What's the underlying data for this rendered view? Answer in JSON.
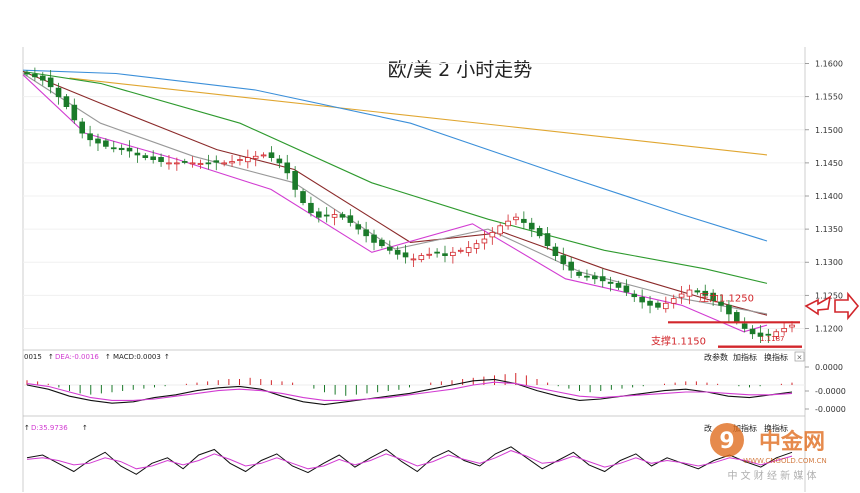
{
  "title": "欧/美 2 小时走势",
  "chart_data": {
    "type": "candlestick",
    "title": "欧/美 2 小时走势",
    "y_ticks": [
      "1.1600",
      "1.1550",
      "1.1500",
      "1.1450",
      "1.1400",
      "1.1350",
      "1.1300",
      "1.1250",
      "1.1200"
    ],
    "ylim": [
      1.1175,
      1.1625
    ],
    "price_trace": [
      1.1585,
      1.158,
      1.1575,
      1.1565,
      1.155,
      1.1535,
      1.1515,
      1.1495,
      1.1485,
      1.148,
      1.1475,
      1.1472,
      1.147,
      1.1468,
      1.1462,
      1.1458,
      1.1455,
      1.1452,
      1.145,
      1.145,
      1.1452,
      1.145,
      1.1449,
      1.145,
      1.1451,
      1.145,
      1.1452,
      1.1455,
      1.1458,
      1.146,
      1.1462,
      1.1458,
      1.145,
      1.1435,
      1.141,
      1.139,
      1.1375,
      1.1368,
      1.137,
      1.1372,
      1.1368,
      1.136,
      1.135,
      1.134,
      1.133,
      1.1325,
      1.1318,
      1.1312,
      1.1308,
      1.1305,
      1.131,
      1.1312,
      1.1315,
      1.131,
      1.1315,
      1.1318,
      1.1322,
      1.1328,
      1.1335,
      1.1345,
      1.1355,
      1.1362,
      1.1368,
      1.136,
      1.135,
      1.134,
      1.1325,
      1.131,
      1.1298,
      1.1288,
      1.128,
      1.1278,
      1.1275,
      1.1272,
      1.1268,
      1.1262,
      1.1255,
      1.1248,
      1.124,
      1.1235,
      1.1232,
      1.1238,
      1.1245,
      1.1252,
      1.1258,
      1.1255,
      1.125,
      1.1242,
      1.1235,
      1.1222,
      1.121,
      1.12,
      1.1192,
      1.1188,
      1.119,
      1.1195,
      1.12,
      1.1205
    ],
    "moving_averages": [
      {
        "color": "#e0a630",
        "points": [
          [
            0.06,
            1.1578
          ],
          [
            0.96,
            1.1462
          ]
        ]
      },
      {
        "color": "#3b8fd9",
        "points": [
          [
            0.0,
            1.159
          ],
          [
            0.12,
            1.1585
          ],
          [
            0.3,
            1.156
          ],
          [
            0.5,
            1.151
          ],
          [
            0.7,
            1.143
          ],
          [
            0.85,
            1.1372
          ],
          [
            0.96,
            1.1332
          ]
        ]
      },
      {
        "color": "#2e9a2e",
        "points": [
          [
            0.0,
            1.1588
          ],
          [
            0.1,
            1.157
          ],
          [
            0.28,
            1.151
          ],
          [
            0.45,
            1.142
          ],
          [
            0.6,
            1.1365
          ],
          [
            0.75,
            1.1318
          ],
          [
            0.88,
            1.129
          ],
          [
            0.96,
            1.1268
          ]
        ]
      },
      {
        "color": "#8b2a2a",
        "points": [
          [
            0.0,
            1.1588
          ],
          [
            0.1,
            1.154
          ],
          [
            0.25,
            1.147
          ],
          [
            0.35,
            1.144
          ],
          [
            0.5,
            1.133
          ],
          [
            0.62,
            1.1345
          ],
          [
            0.75,
            1.129
          ],
          [
            0.88,
            1.1245
          ],
          [
            0.96,
            1.122
          ]
        ]
      },
      {
        "color": "#999999",
        "points": [
          [
            0.0,
            1.1585
          ],
          [
            0.1,
            1.151
          ],
          [
            0.22,
            1.146
          ],
          [
            0.35,
            1.142
          ],
          [
            0.48,
            1.132
          ],
          [
            0.6,
            1.135
          ],
          [
            0.72,
            1.1285
          ],
          [
            0.85,
            1.1245
          ],
          [
            0.96,
            1.1222
          ]
        ]
      },
      {
        "color": "#d23cd2",
        "points": [
          [
            0.0,
            1.1583
          ],
          [
            0.08,
            1.1495
          ],
          [
            0.2,
            1.1455
          ],
          [
            0.32,
            1.141
          ],
          [
            0.45,
            1.1315
          ],
          [
            0.58,
            1.1358
          ],
          [
            0.7,
            1.1275
          ],
          [
            0.85,
            1.1235
          ],
          [
            0.93,
            1.1195
          ],
          [
            0.96,
            1.1205
          ]
        ]
      }
    ],
    "annotations": [
      {
        "text": "压力1.1250",
        "value": 1.125,
        "color": "#d2262b"
      },
      {
        "text": "支撑1.1150",
        "value": 1.118,
        "color": "#d2262b"
      },
      {
        "text": "1.1187",
        "value": 1.1187,
        "color": "#d2262b"
      }
    ],
    "macd": {
      "label_left": "0015",
      "dea_label": "DEA:-0.0016",
      "macd_label": "MACD:0.0003",
      "y_ticks": [
        "0.0000",
        "-0.0000",
        "-0.0000"
      ],
      "histogram": [
        0.4,
        0.3,
        0.1,
        -0.2,
        -0.5,
        -0.7,
        -0.8,
        -0.7,
        -0.6,
        -0.5,
        -0.4,
        -0.3,
        -0.2,
        -0.1,
        0.0,
        0.1,
        0.2,
        0.3,
        0.4,
        0.5,
        0.5,
        0.6,
        0.5,
        0.4,
        0.3,
        0.2,
        0.0,
        -0.3,
        -0.6,
        -0.8,
        -0.9,
        -0.8,
        -0.7,
        -0.6,
        -0.5,
        -0.4,
        -0.2,
        0.0,
        0.2,
        0.3,
        0.4,
        0.5,
        0.6,
        0.7,
        0.8,
        0.9,
        1.0,
        0.8,
        0.5,
        0.2,
        -0.1,
        -0.3,
        -0.5,
        -0.6,
        -0.5,
        -0.4,
        -0.3,
        -0.2,
        -0.1,
        0.0,
        0.1,
        0.2,
        0.3,
        0.3,
        0.2,
        0.1,
        0.0,
        -0.1,
        -0.2,
        -0.1,
        0.0,
        0.1,
        0.2
      ],
      "dif": [
        0.5,
        0.2,
        -0.3,
        -0.6,
        -0.8,
        -0.7,
        -0.4,
        -0.2,
        0.1,
        0.3,
        0.4,
        0.2,
        -0.3,
        -0.7,
        -0.9,
        -0.7,
        -0.5,
        -0.3,
        -0.1,
        0.2,
        0.5,
        0.8,
        0.9,
        0.6,
        0.1,
        -0.3,
        -0.6,
        -0.5,
        -0.3,
        -0.1,
        0.1,
        0.2,
        0.0,
        -0.3,
        -0.4,
        -0.2,
        0.0
      ],
      "dea": [
        0.6,
        0.4,
        0.0,
        -0.4,
        -0.6,
        -0.6,
        -0.5,
        -0.3,
        -0.1,
        0.1,
        0.2,
        0.1,
        -0.1,
        -0.4,
        -0.6,
        -0.6,
        -0.5,
        -0.4,
        -0.2,
        0.0,
        0.2,
        0.5,
        0.7,
        0.6,
        0.3,
        0.0,
        -0.3,
        -0.4,
        -0.3,
        -0.2,
        -0.1,
        0.0,
        0.0,
        -0.1,
        -0.2,
        -0.2,
        -0.1
      ]
    },
    "kdj": {
      "label": "D:35.9736",
      "k": [
        55,
        60,
        45,
        30,
        50,
        65,
        40,
        25,
        45,
        55,
        35,
        60,
        70,
        45,
        30,
        50,
        62,
        40,
        28,
        45,
        60,
        38,
        55,
        70,
        48,
        30,
        55,
        68,
        50,
        40,
        62,
        75,
        55,
        35,
        50,
        65,
        42,
        30,
        50,
        62,
        40,
        55,
        45,
        35,
        50,
        60,
        48,
        38,
        55,
        65
      ],
      "d": [
        52,
        55,
        50,
        42,
        45,
        55,
        48,
        35,
        40,
        50,
        42,
        50,
        62,
        52,
        40,
        45,
        55,
        45,
        35,
        40,
        52,
        42,
        50,
        62,
        52,
        40,
        48,
        60,
        52,
        45,
        55,
        68,
        58,
        45,
        48,
        58,
        48,
        38,
        45,
        55,
        45,
        50,
        46,
        40,
        46,
        55,
        50,
        42,
        50,
        58
      ]
    }
  },
  "buttons": {
    "params": "改参数",
    "add": "加指标",
    "swap": "换指标",
    "close": "×",
    "params2": "改",
    "add2": "加指标",
    "swap2": "换指标"
  },
  "watermark": {
    "brand": "中金网",
    "sub": "中 文 财 经 新 媒 体",
    "url": "WWW.CNGOLD.COM.CN"
  }
}
